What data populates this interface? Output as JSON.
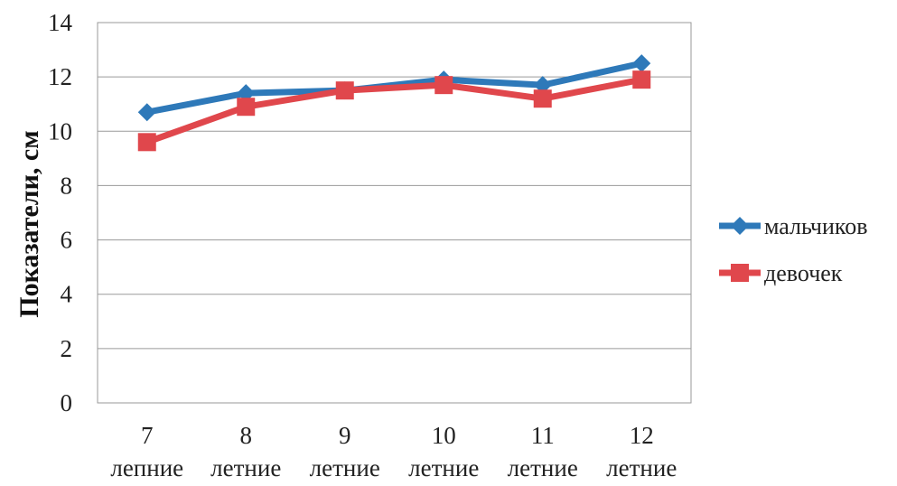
{
  "chart_data": {
    "type": "line",
    "title": "",
    "xlabel": "",
    "ylabel": "Показатели, см",
    "ylim": [
      0,
      14
    ],
    "yticks": [
      0,
      2,
      4,
      6,
      8,
      10,
      12,
      14
    ],
    "categories": [
      {
        "num": "7",
        "word": "лепние"
      },
      {
        "num": "8",
        "word": "летние"
      },
      {
        "num": "9",
        "word": "летние"
      },
      {
        "num": "10",
        "word": "летние"
      },
      {
        "num": "11",
        "word": "летние"
      },
      {
        "num": "12",
        "word": "летние"
      }
    ],
    "series": [
      {
        "name": "мальчиков",
        "color": "#2e79b9",
        "marker": "diamond",
        "values": [
          10.7,
          11.4,
          11.5,
          11.9,
          11.7,
          12.5
        ]
      },
      {
        "name": "девочек",
        "color": "#e0474c",
        "marker": "square",
        "values": [
          9.6,
          10.9,
          11.5,
          11.7,
          11.2,
          11.9
        ]
      }
    ],
    "grid": true,
    "legend": "right"
  }
}
